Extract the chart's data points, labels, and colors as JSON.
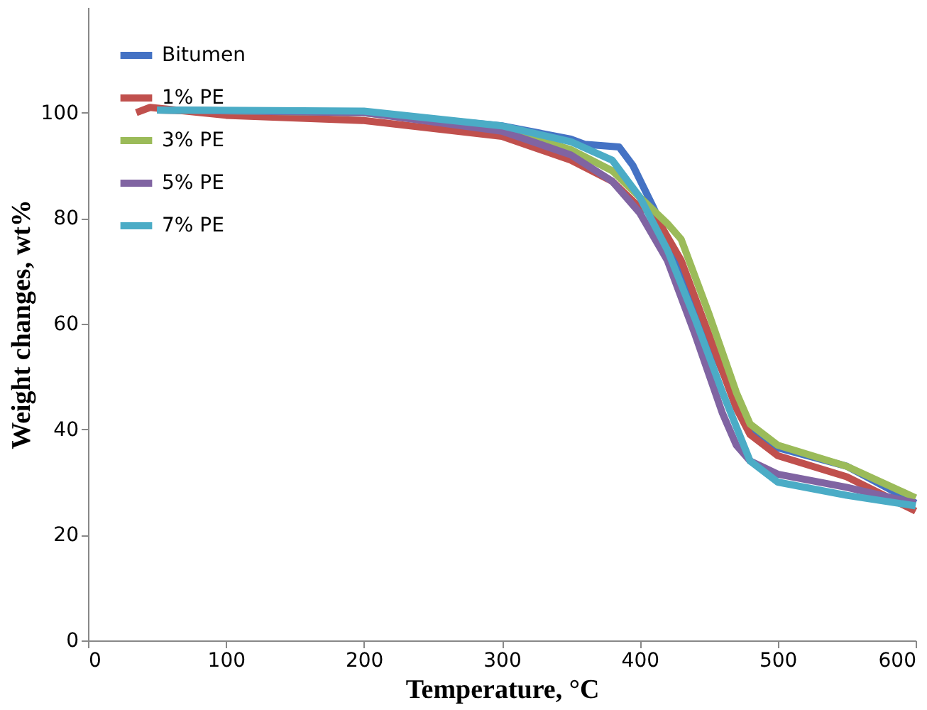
{
  "chart_data": {
    "type": "line",
    "xlabel": "Temperature, °C",
    "ylabel": "Weight changes, wt%",
    "xlim": [
      0,
      600
    ],
    "xticks": [
      0,
      100,
      200,
      300,
      400,
      500,
      600
    ],
    "ylim": [
      0,
      120
    ],
    "yticks": [
      0,
      20,
      40,
      60,
      80,
      100
    ],
    "grid": false,
    "legend": "top left",
    "marker": "none",
    "line_style": "solid",
    "series": [
      {
        "name": "Bitumen",
        "color": "#4472c4",
        "x": [
          50,
          200,
          300,
          350,
          360,
          385,
          395,
          410,
          430,
          450,
          470,
          480,
          500,
          550,
          600
        ],
        "values": [
          100.5,
          100,
          97.5,
          95,
          94,
          93.5,
          90,
          82,
          70,
          57,
          45,
          40,
          36.5,
          33,
          26
        ]
      },
      {
        "name": "1% PE",
        "color": "#c0504d",
        "x": [
          35,
          45,
          100,
          200,
          300,
          350,
          380,
          400,
          410,
          430,
          450,
          470,
          480,
          500,
          550,
          600
        ],
        "values": [
          100,
          101,
          99.5,
          98.5,
          95.5,
          91,
          87,
          82,
          81,
          72,
          58,
          44,
          39,
          35,
          31,
          24.5
        ]
      },
      {
        "name": "3% PE",
        "color": "#9bbb59",
        "x": [
          50,
          200,
          300,
          350,
          380,
          400,
          420,
          430,
          450,
          470,
          480,
          500,
          550,
          600
        ],
        "values": [
          100.5,
          100,
          97,
          93,
          89,
          84,
          79,
          76,
          62,
          47,
          41,
          37,
          33,
          27
        ]
      },
      {
        "name": "5% PE",
        "color": "#8064a2",
        "x": [
          50,
          200,
          300,
          350,
          380,
          400,
          420,
          440,
          460,
          470,
          480,
          500,
          550,
          600
        ],
        "values": [
          100.5,
          100,
          96.5,
          92,
          87,
          81,
          72,
          58,
          43,
          37,
          34,
          31.5,
          29,
          26
        ]
      },
      {
        "name": "7% PE",
        "color": "#4bacc6",
        "x": [
          50,
          200,
          300,
          350,
          380,
          400,
          420,
          440,
          460,
          480,
          500,
          550,
          600
        ],
        "values": [
          100.5,
          100.3,
          97.5,
          94.5,
          91,
          84,
          74,
          61,
          47,
          34,
          30,
          27.5,
          25.5
        ]
      }
    ]
  }
}
